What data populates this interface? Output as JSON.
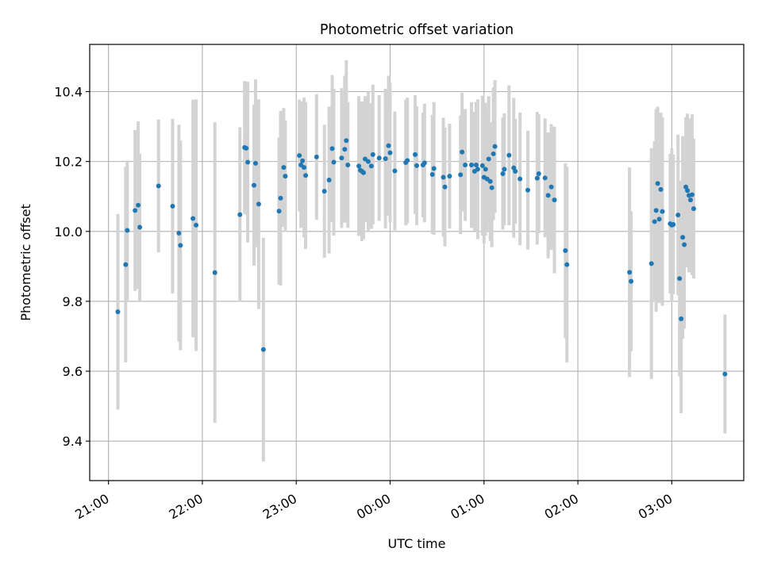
{
  "chart_data": {
    "type": "scatter",
    "title": "Photometric offset variation",
    "xlabel": "UTC time",
    "ylabel": "Photometric offset",
    "x_ticks": [
      "21:00",
      "22:00",
      "23:00",
      "00:00",
      "01:00",
      "02:00",
      "03:00"
    ],
    "y_ticks": [
      "9.4",
      "9.6",
      "9.8",
      "10.0",
      "10.2",
      "10.4"
    ],
    "xlim": [
      "20:48",
      "03:46"
    ],
    "ylim": [
      9.287,
      10.535
    ],
    "grid": true,
    "error_bars": true,
    "colors": {
      "point": "#1f77b4",
      "errorbar": "#d3d3d3",
      "grid": "#b0b0b0"
    },
    "points": [
      {
        "x": "21:06",
        "y": 9.77,
        "err": 0.28
      },
      {
        "x": "21:11",
        "y": 9.905,
        "err": 0.28
      },
      {
        "x": "21:12",
        "y": 10.003,
        "err": 0.2
      },
      {
        "x": "21:17",
        "y": 10.06,
        "err": 0.23
      },
      {
        "x": "21:19",
        "y": 10.075,
        "err": 0.24
      },
      {
        "x": "21:20",
        "y": 10.012,
        "err": 0.21
      },
      {
        "x": "21:32",
        "y": 10.13,
        "err": 0.19
      },
      {
        "x": "21:41",
        "y": 10.072,
        "err": 0.25
      },
      {
        "x": "21:45",
        "y": 9.995,
        "err": 0.31
      },
      {
        "x": "21:46",
        "y": 9.96,
        "err": 0.3
      },
      {
        "x": "21:54",
        "y": 10.037,
        "err": 0.34
      },
      {
        "x": "21:56",
        "y": 10.018,
        "err": 0.36
      },
      {
        "x": "22:08",
        "y": 9.882,
        "err": 0.43
      },
      {
        "x": "22:24",
        "y": 10.048,
        "err": 0.25
      },
      {
        "x": "22:27",
        "y": 10.24,
        "err": 0.19
      },
      {
        "x": "22:28",
        "y": 10.238,
        "err": 0.19
      },
      {
        "x": "22:29",
        "y": 10.198,
        "err": 0.23
      },
      {
        "x": "22:33",
        "y": 10.132,
        "err": 0.23
      },
      {
        "x": "22:34",
        "y": 10.195,
        "err": 0.24
      },
      {
        "x": "22:36",
        "y": 10.078,
        "err": 0.3
      },
      {
        "x": "22:39",
        "y": 9.662,
        "err": 0.32
      },
      {
        "x": "22:49",
        "y": 10.058,
        "err": 0.21
      },
      {
        "x": "22:50",
        "y": 10.095,
        "err": 0.25
      },
      {
        "x": "22:52",
        "y": 10.183,
        "err": 0.17
      },
      {
        "x": "22:53",
        "y": 10.158,
        "err": 0.16
      },
      {
        "x": "23:02",
        "y": 10.217,
        "err": 0.16
      },
      {
        "x": "23:03",
        "y": 10.19,
        "err": 0.18
      },
      {
        "x": "23:04",
        "y": 10.202,
        "err": 0.17
      },
      {
        "x": "23:05",
        "y": 10.183,
        "err": 0.2
      },
      {
        "x": "23:06",
        "y": 10.16,
        "err": 0.21
      },
      {
        "x": "23:13",
        "y": 10.213,
        "err": 0.18
      },
      {
        "x": "23:18",
        "y": 10.115,
        "err": 0.19
      },
      {
        "x": "23:21",
        "y": 10.147,
        "err": 0.21
      },
      {
        "x": "23:23",
        "y": 10.237,
        "err": 0.21
      },
      {
        "x": "23:24",
        "y": 10.198,
        "err": 0.21
      },
      {
        "x": "23:29",
        "y": 10.21,
        "err": 0.2
      },
      {
        "x": "23:31",
        "y": 10.235,
        "err": 0.21
      },
      {
        "x": "23:32",
        "y": 10.26,
        "err": 0.23
      },
      {
        "x": "23:33",
        "y": 10.19,
        "err": 0.18
      },
      {
        "x": "23:40",
        "y": 10.187,
        "err": 0.2
      },
      {
        "x": "23:41",
        "y": 10.175,
        "err": 0.18
      },
      {
        "x": "23:42",
        "y": 10.172,
        "err": 0.2
      },
      {
        "x": "23:43",
        "y": 10.168,
        "err": 0.19
      },
      {
        "x": "23:44",
        "y": 10.207,
        "err": 0.18
      },
      {
        "x": "23:46",
        "y": 10.2,
        "err": 0.2
      },
      {
        "x": "23:48",
        "y": 10.187,
        "err": 0.18
      },
      {
        "x": "23:49",
        "y": 10.22,
        "err": 0.2
      },
      {
        "x": "23:53",
        "y": 10.21,
        "err": 0.18
      },
      {
        "x": "23:57",
        "y": 10.208,
        "err": 0.2
      },
      {
        "x": "23:59",
        "y": 10.245,
        "err": 0.2
      },
      {
        "x": "00:00",
        "y": 10.225,
        "err": 0.2
      },
      {
        "x": "00:03",
        "y": 10.173,
        "err": 0.17
      },
      {
        "x": "00:10",
        "y": 10.197,
        "err": 0.18
      },
      {
        "x": "00:11",
        "y": 10.203,
        "err": 0.18
      },
      {
        "x": "00:16",
        "y": 10.22,
        "err": 0.17
      },
      {
        "x": "00:17",
        "y": 10.188,
        "err": 0.17
      },
      {
        "x": "00:21",
        "y": 10.19,
        "err": 0.15
      },
      {
        "x": "00:22",
        "y": 10.196,
        "err": 0.17
      },
      {
        "x": "00:27",
        "y": 10.163,
        "err": 0.17
      },
      {
        "x": "00:28",
        "y": 10.18,
        "err": 0.19
      },
      {
        "x": "00:34",
        "y": 10.155,
        "err": 0.17
      },
      {
        "x": "00:35",
        "y": 10.127,
        "err": 0.17
      },
      {
        "x": "00:38",
        "y": 10.158,
        "err": 0.15
      },
      {
        "x": "00:45",
        "y": 10.162,
        "err": 0.17
      },
      {
        "x": "00:46",
        "y": 10.227,
        "err": 0.17
      },
      {
        "x": "00:48",
        "y": 10.19,
        "err": 0.16
      },
      {
        "x": "00:52",
        "y": 10.19,
        "err": 0.18
      },
      {
        "x": "00:54",
        "y": 10.172,
        "err": 0.17
      },
      {
        "x": "00:55",
        "y": 10.19,
        "err": 0.18
      },
      {
        "x": "00:56",
        "y": 10.178,
        "err": 0.2
      },
      {
        "x": "00:59",
        "y": 10.188,
        "err": 0.2
      },
      {
        "x": "01:00",
        "y": 10.155,
        "err": 0.19
      },
      {
        "x": "01:01",
        "y": 10.178,
        "err": 0.19
      },
      {
        "x": "01:02",
        "y": 10.15,
        "err": 0.15
      },
      {
        "x": "01:03",
        "y": 10.207,
        "err": 0.18
      },
      {
        "x": "01:04",
        "y": 10.143,
        "err": 0.17
      },
      {
        "x": "01:05",
        "y": 10.125,
        "err": 0.17
      },
      {
        "x": "01:06",
        "y": 10.222,
        "err": 0.19
      },
      {
        "x": "01:07",
        "y": 10.243,
        "err": 0.19
      },
      {
        "x": "01:12",
        "y": 10.165,
        "err": 0.16
      },
      {
        "x": "01:13",
        "y": 10.178,
        "err": 0.16
      },
      {
        "x": "01:16",
        "y": 10.218,
        "err": 0.2
      },
      {
        "x": "01:19",
        "y": 10.182,
        "err": 0.2
      },
      {
        "x": "01:20",
        "y": 10.172,
        "err": 0.15
      },
      {
        "x": "01:23",
        "y": 10.15,
        "err": 0.19
      },
      {
        "x": "01:28",
        "y": 10.118,
        "err": 0.17
      },
      {
        "x": "01:34",
        "y": 10.152,
        "err": 0.19
      },
      {
        "x": "01:35",
        "y": 10.165,
        "err": 0.17
      },
      {
        "x": "01:39",
        "y": 10.153,
        "err": 0.17
      },
      {
        "x": "01:41",
        "y": 10.103,
        "err": 0.18
      },
      {
        "x": "01:43",
        "y": 10.127,
        "err": 0.18
      },
      {
        "x": "01:45",
        "y": 10.09,
        "err": 0.21
      },
      {
        "x": "01:52",
        "y": 9.945,
        "err": 0.25
      },
      {
        "x": "01:53",
        "y": 9.905,
        "err": 0.28
      },
      {
        "x": "02:33",
        "y": 9.883,
        "err": 0.3
      },
      {
        "x": "02:34",
        "y": 9.857,
        "err": 0.2
      },
      {
        "x": "02:47",
        "y": 9.908,
        "err": 0.33
      },
      {
        "x": "02:49",
        "y": 10.028,
        "err": 0.23
      },
      {
        "x": "02:50",
        "y": 10.06,
        "err": 0.29
      },
      {
        "x": "02:51",
        "y": 10.137,
        "err": 0.22
      },
      {
        "x": "02:52",
        "y": 10.035,
        "err": 0.24
      },
      {
        "x": "02:53",
        "y": 10.12,
        "err": 0.22
      },
      {
        "x": "02:54",
        "y": 10.057,
        "err": 0.27
      },
      {
        "x": "02:59",
        "y": 10.022,
        "err": 0.2
      },
      {
        "x": "03:00",
        "y": 10.018,
        "err": 0.22
      },
      {
        "x": "03:01",
        "y": 10.02,
        "err": 0.2
      },
      {
        "x": "03:04",
        "y": 10.047,
        "err": 0.23
      },
      {
        "x": "03:05",
        "y": 9.865,
        "err": 0.28
      },
      {
        "x": "03:06",
        "y": 9.75,
        "err": 0.27
      },
      {
        "x": "03:07",
        "y": 9.983,
        "err": 0.29
      },
      {
        "x": "03:08",
        "y": 9.962,
        "err": 0.24
      },
      {
        "x": "03:09",
        "y": 10.127,
        "err": 0.2
      },
      {
        "x": "03:10",
        "y": 10.117,
        "err": 0.22
      },
      {
        "x": "03:11",
        "y": 10.103,
        "err": 0.22
      },
      {
        "x": "03:12",
        "y": 10.09,
        "err": 0.2
      },
      {
        "x": "03:13",
        "y": 10.105,
        "err": 0.23
      },
      {
        "x": "03:14",
        "y": 10.065,
        "err": 0.2
      },
      {
        "x": "03:34",
        "y": 9.592,
        "err": 0.17
      }
    ]
  }
}
